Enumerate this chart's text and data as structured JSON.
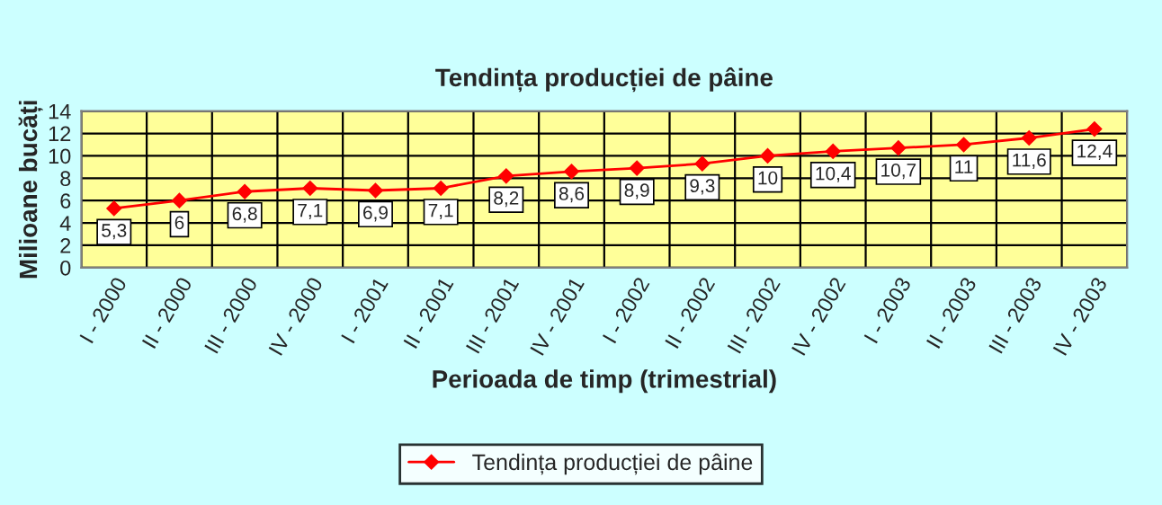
{
  "chart_data": {
    "type": "line",
    "title": "Tendința producției de pâine",
    "xlabel": "Perioada de timp (trimestrial)",
    "ylabel": "Milioane bucăți",
    "categories": [
      "I - 2000",
      "II - 2000",
      "III - 2000",
      "IV - 2000",
      "I - 2001",
      "II - 2001",
      "III - 2001",
      "IV - 2001",
      "I - 2002",
      "II - 2002",
      "III - 2002",
      "IV - 2002",
      "I - 2003",
      "II - 2003",
      "III - 2003",
      "IV - 2003"
    ],
    "series": [
      {
        "name": "Tendința producției de pâine",
        "color": "#ff0000",
        "values": [
          5.3,
          6,
          6.8,
          7.1,
          6.9,
          7.1,
          8.2,
          8.6,
          8.9,
          9.3,
          10,
          10.4,
          10.7,
          11,
          11.6,
          12.4
        ],
        "value_labels": [
          "5,3",
          "6",
          "6,8",
          "7,1",
          "6,9",
          "7,1",
          "8,2",
          "8,6",
          "8,9",
          "9,3",
          "10",
          "10,4",
          "10,7",
          "11",
          "11,6",
          "12,4"
        ]
      }
    ],
    "ylim": [
      0,
      14
    ],
    "yticks": [
      0,
      2,
      4,
      6,
      8,
      10,
      12,
      14
    ],
    "grid": true,
    "legend": "bottom",
    "marker": "diamond",
    "line_style": "solid"
  }
}
